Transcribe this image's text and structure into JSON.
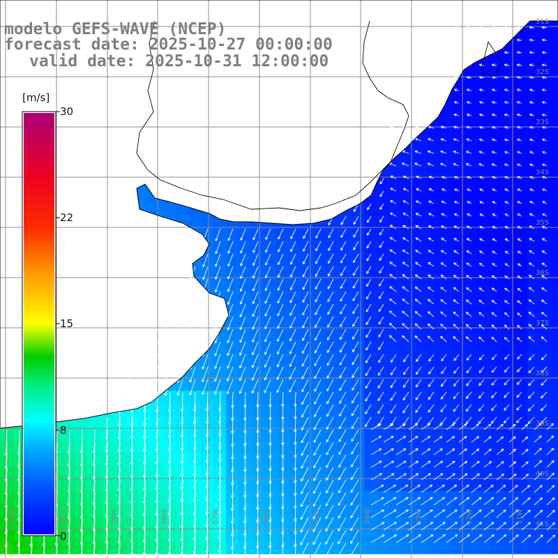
{
  "title": {
    "line1": "modelo GEFS-WAVE (NCEP)",
    "line2": "forecast date: 2025-10-27 00:00:00",
    "line3": "valid date: 2025-10-31 12:00:00"
  },
  "colorbar": {
    "unit": "[m/s]",
    "ticks": [
      {
        "label": "30",
        "value": 30
      },
      {
        "label": "22",
        "value": 22
      },
      {
        "label": "15",
        "value": 15
      },
      {
        "label": "8",
        "value": 8
      },
      {
        "label": "0",
        "value": 0
      }
    ],
    "colors": [
      "#0000ff",
      "#0066ff",
      "#00ccff",
      "#00ffff",
      "#00dd66",
      "#00cc00",
      "#66dd00",
      "#ffff00",
      "#ff9900",
      "#ff3300",
      "#ff0000",
      "#cc0066",
      "#aa0077"
    ]
  },
  "grid_labels": {
    "lat": [
      "31S",
      "32S",
      "33S",
      "34S",
      "35S",
      "36S",
      "37S",
      "38S",
      "39S",
      "40S",
      "41S"
    ],
    "lon": [
      "61W",
      "60W",
      "59W",
      "58W",
      "57W",
      "56W",
      "55W",
      "54W",
      "53W",
      "52W",
      "51W"
    ]
  },
  "map": {
    "extent": {
      "lon_min": -62.0,
      "lon_max": -50.5,
      "lat_min": -41.3,
      "lat_max": -30.3
    },
    "land_color": "#ffffff",
    "coast_color": "#000000",
    "grid_color": "#909090",
    "arrow_color": "#ffffff"
  }
}
